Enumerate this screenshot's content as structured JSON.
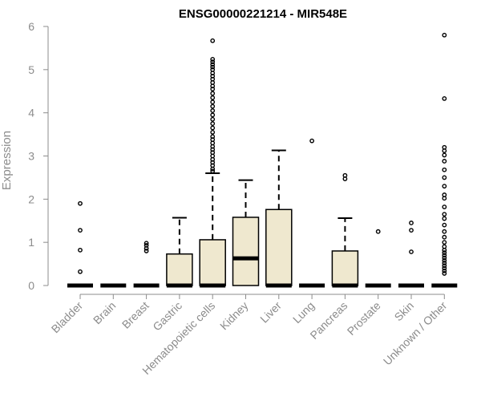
{
  "chart_data": {
    "type": "boxplot",
    "title": "ENSG00000221214 - MIR548E",
    "ylabel": "Expression",
    "xlabel": "",
    "ylim": [
      0,
      6
    ],
    "yticks": [
      0,
      1,
      2,
      3,
      4,
      5,
      6
    ],
    "grid": false,
    "colors": {
      "box_fill": "#efe8cf",
      "stroke": "#000000",
      "axis": "#8c8c8c"
    },
    "categories": [
      "Bladder",
      "Brain",
      "Breast",
      "Gastric",
      "Hematopoietic cells",
      "Kidney",
      "Liver",
      "Lung",
      "Pancreas",
      "Prostate",
      "Skin",
      "Unknown / Other"
    ],
    "boxes": [
      {
        "category": "Bladder",
        "q1": 0,
        "median": 0,
        "q3": 0,
        "whisker_low": 0,
        "whisker_high": 0,
        "outliers": [
          0.32,
          0.82,
          1.28,
          1.9
        ]
      },
      {
        "category": "Brain",
        "q1": 0,
        "median": 0,
        "q3": 0,
        "whisker_low": 0,
        "whisker_high": 0,
        "outliers": []
      },
      {
        "category": "Breast",
        "q1": 0,
        "median": 0,
        "q3": 0,
        "whisker_low": 0,
        "whisker_high": 0,
        "outliers": [
          0.8,
          0.86,
          0.93,
          0.98
        ]
      },
      {
        "category": "Gastric",
        "q1": 0,
        "median": 0,
        "q3": 0.73,
        "whisker_low": 0,
        "whisker_high": 1.57,
        "outliers": []
      },
      {
        "category": "Hematopoietic cells",
        "q1": 0,
        "median": 0,
        "q3": 1.06,
        "whisker_low": 0,
        "whisker_high": 2.6,
        "outliers": [
          2.65,
          2.7,
          2.78,
          2.85,
          2.92,
          3.0,
          3.08,
          3.15,
          3.22,
          3.3,
          3.38,
          3.45,
          3.55,
          3.65,
          3.75,
          3.85,
          3.95,
          4.05,
          4.15,
          4.25,
          4.35,
          4.45,
          4.55,
          4.62,
          4.7,
          4.78,
          4.85,
          4.92,
          5.0,
          5.06,
          5.12,
          5.18,
          5.24,
          5.67
        ]
      },
      {
        "category": "Kidney",
        "q1": 0,
        "median": 0.63,
        "q3": 1.58,
        "whisker_low": 0,
        "whisker_high": 2.44,
        "outliers": []
      },
      {
        "category": "Liver",
        "q1": 0,
        "median": 0,
        "q3": 1.76,
        "whisker_low": 0,
        "whisker_high": 3.13,
        "outliers": []
      },
      {
        "category": "Lung",
        "q1": 0,
        "median": 0,
        "q3": 0,
        "whisker_low": 0,
        "whisker_high": 0,
        "outliers": [
          3.35
        ]
      },
      {
        "category": "Pancreas",
        "q1": 0,
        "median": 0,
        "q3": 0.8,
        "whisker_low": 0,
        "whisker_high": 1.56,
        "outliers": [
          2.47,
          2.55
        ]
      },
      {
        "category": "Prostate",
        "q1": 0,
        "median": 0,
        "q3": 0,
        "whisker_low": 0,
        "whisker_high": 0,
        "outliers": [
          1.25
        ]
      },
      {
        "category": "Skin",
        "q1": 0,
        "median": 0,
        "q3": 0,
        "whisker_low": 0,
        "whisker_high": 0,
        "outliers": [
          0.78,
          1.28,
          1.45
        ]
      },
      {
        "category": "Unknown / Other",
        "q1": 0,
        "median": 0,
        "q3": 0,
        "whisker_low": 0,
        "whisker_high": 0,
        "outliers": [
          0.28,
          0.34,
          0.4,
          0.46,
          0.52,
          0.58,
          0.64,
          0.7,
          0.76,
          0.82,
          0.9,
          1.0,
          1.12,
          1.25,
          1.4,
          1.55,
          1.65,
          1.82,
          2.02,
          2.1,
          2.3,
          2.5,
          2.68,
          2.88,
          3.02,
          3.12,
          3.2,
          4.33,
          5.8
        ]
      }
    ]
  }
}
